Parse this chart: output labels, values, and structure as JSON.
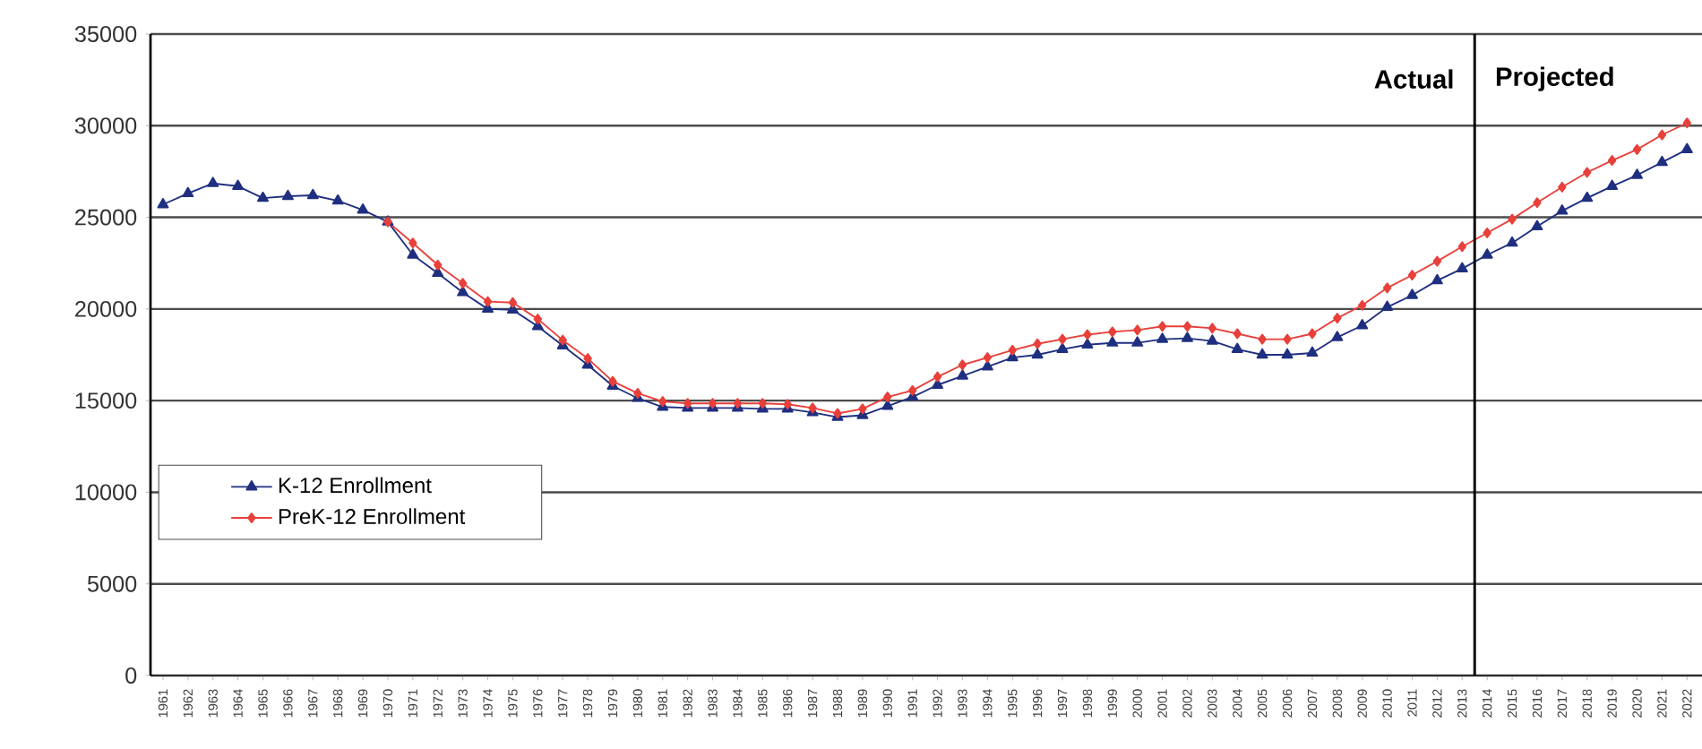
{
  "chart_data": {
    "type": "line",
    "x": [
      1961,
      1962,
      1963,
      1964,
      1965,
      1966,
      1967,
      1968,
      1969,
      1970,
      1971,
      1972,
      1973,
      1974,
      1975,
      1976,
      1977,
      1978,
      1979,
      1980,
      1981,
      1982,
      1983,
      1984,
      1985,
      1986,
      1987,
      1988,
      1989,
      1990,
      1991,
      1992,
      1993,
      1994,
      1995,
      1996,
      1997,
      1998,
      1999,
      2000,
      2001,
      2002,
      2003,
      2004,
      2005,
      2006,
      2007,
      2008,
      2009,
      2010,
      2011,
      2012,
      2013,
      2014,
      2015,
      2016,
      2017,
      2018,
      2019,
      2020,
      2021,
      2022
    ],
    "series": [
      {
        "name": "K-12 Enrollment",
        "color": "#1f2f80",
        "marker": "triangle",
        "values": [
          25700,
          26300,
          26850,
          26700,
          26050,
          26150,
          26200,
          25900,
          25400,
          24750,
          22950,
          21950,
          20900,
          20000,
          19950,
          19050,
          18000,
          16950,
          15800,
          15130,
          14650,
          14600,
          14600,
          14600,
          14550,
          14550,
          14350,
          14100,
          14200,
          14700,
          15200,
          15850,
          16350,
          16850,
          17350,
          17500,
          17800,
          18050,
          18150,
          18150,
          18350,
          18400,
          18250,
          17800,
          17500,
          17500,
          17600,
          18450,
          19100,
          20100,
          20750,
          21550,
          22200,
          22950,
          23600,
          24500,
          25350,
          26050,
          26700,
          27300,
          28000,
          28700
        ]
      },
      {
        "name": "PreK-12 Enrollment",
        "color": "#e8403a",
        "marker": "diamond",
        "values": [
          null,
          null,
          null,
          null,
          null,
          null,
          null,
          null,
          null,
          24750,
          23600,
          22400,
          21400,
          20400,
          20350,
          19450,
          18300,
          17300,
          16050,
          15400,
          14950,
          14850,
          14850,
          14850,
          14850,
          14800,
          14600,
          14300,
          14550,
          15200,
          15550,
          16300,
          16950,
          17350,
          17750,
          18100,
          18350,
          18600,
          18750,
          18850,
          19050,
          19050,
          18950,
          18650,
          18350,
          18350,
          18650,
          19500,
          20200,
          21150,
          21850,
          22600,
          23400,
          24150,
          24900,
          25800,
          26650,
          27450,
          28100,
          28700,
          29500,
          30150
        ]
      }
    ],
    "xlim": [
      1960.5,
      2022.6
    ],
    "xticks": [
      1961,
      1962,
      1963,
      1964,
      1965,
      1966,
      1967,
      1968,
      1969,
      1970,
      1971,
      1972,
      1973,
      1974,
      1975,
      1976,
      1977,
      1978,
      1979,
      1980,
      1981,
      1982,
      1983,
      1984,
      1985,
      1986,
      1987,
      1988,
      1989,
      1990,
      1991,
      1992,
      1993,
      1994,
      1995,
      1996,
      1997,
      1998,
      1999,
      2000,
      2001,
      2002,
      2003,
      2004,
      2005,
      2006,
      2007,
      2008,
      2009,
      2010,
      2011,
      2012,
      2013,
      2014,
      2015,
      2016,
      2017,
      2018,
      2019,
      2020,
      2021,
      2022
    ],
    "ylim": [
      0,
      35000
    ],
    "yticks": [
      0,
      5000,
      10000,
      15000,
      20000,
      25000,
      30000,
      35000
    ],
    "grid": "y",
    "legend": "left",
    "ref_lines": [
      {
        "axis": "x",
        "value": 2013.5,
        "color": "#000000"
      }
    ],
    "annotations": [
      "Actual",
      "Projected"
    ]
  }
}
